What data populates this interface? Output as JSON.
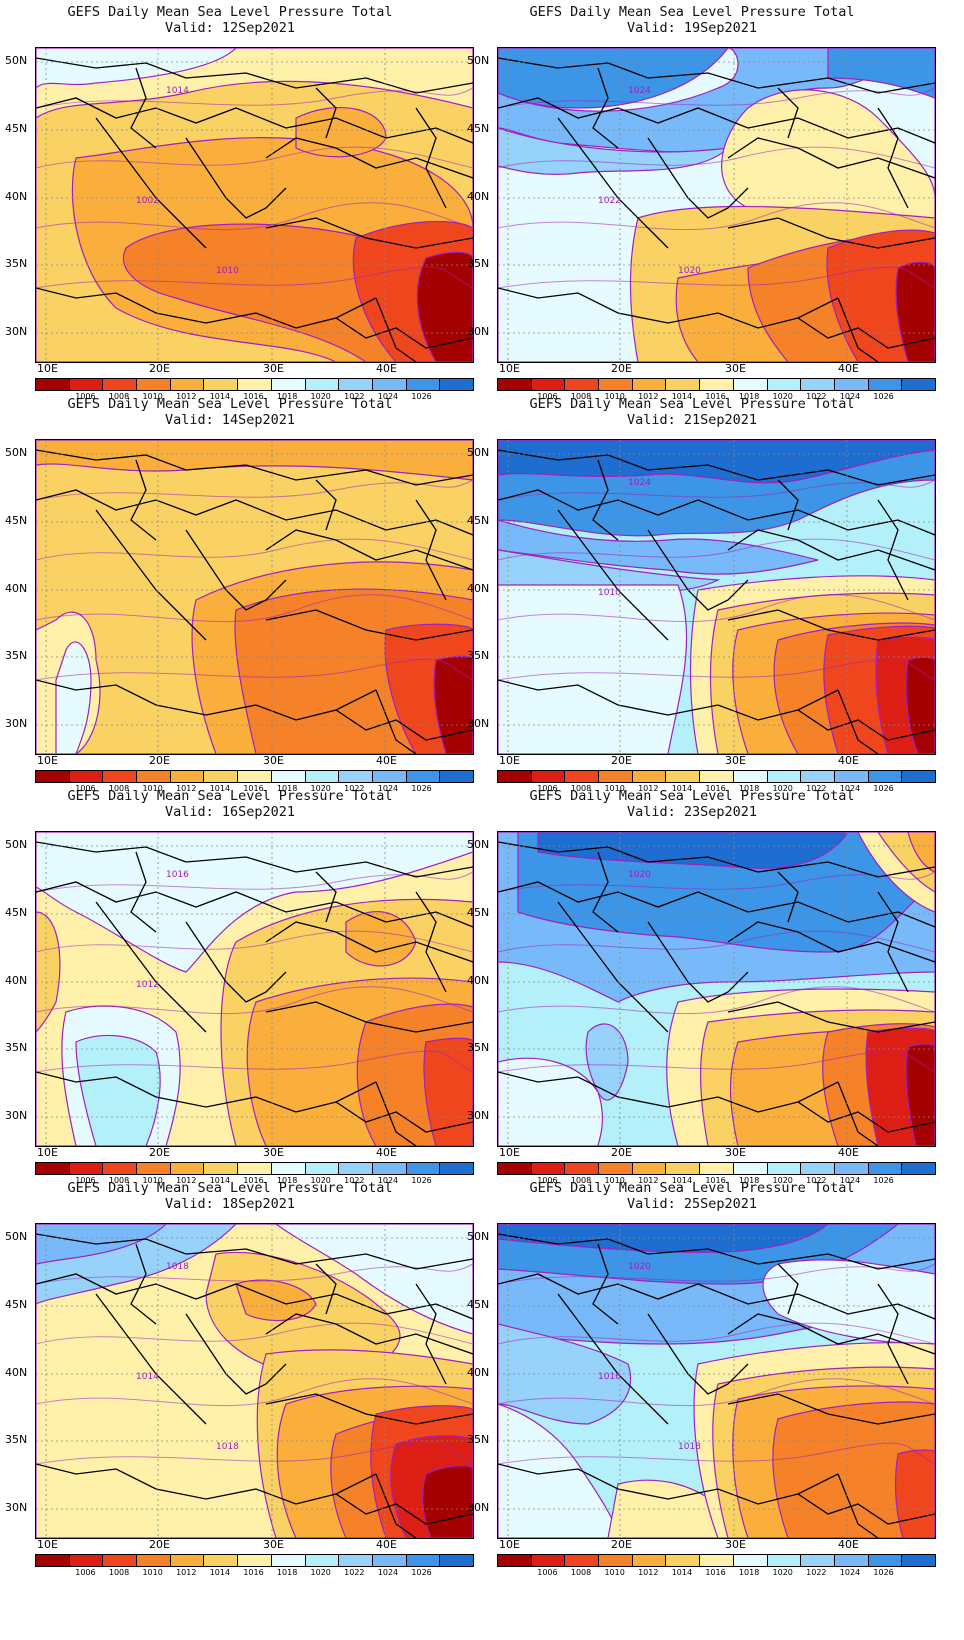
{
  "title_line": "GEFS Daily Mean Sea Level Pressure Total",
  "panels": [
    {
      "valid": "Valid: 12Sep2021",
      "theme": "warm",
      "labels": [
        "1014",
        "1002",
        "1010"
      ]
    },
    {
      "valid": "Valid: 19Sep2021",
      "theme": "mixcool",
      "labels": [
        "1024",
        "1022",
        "1020"
      ]
    },
    {
      "valid": "Valid: 14Sep2021",
      "theme": "warm2",
      "labels": []
    },
    {
      "valid": "Valid: 21Sep2021",
      "theme": "cool",
      "labels": [
        "1024",
        "1010"
      ]
    },
    {
      "valid": "Valid: 16Sep2021",
      "theme": "mild",
      "labels": [
        "1016",
        "1012"
      ]
    },
    {
      "valid": "Valid: 23Sep2021",
      "theme": "cool2",
      "labels": [
        "1020"
      ]
    },
    {
      "valid": "Valid: 18Sep2021",
      "theme": "mixwarm",
      "labels": [
        "1018",
        "1014",
        "1018"
      ]
    },
    {
      "valid": "Valid: 25Sep2021",
      "theme": "cool3",
      "labels": [
        "1020",
        "1016",
        "1018"
      ]
    }
  ],
  "lat_labels": [
    "50N",
    "45N",
    "40N",
    "35N",
    "30N"
  ],
  "lon_labels": [
    "10E",
    "20E",
    "30E",
    "40E"
  ],
  "colorbar": {
    "colors": [
      "#a50000",
      "#dc1e14",
      "#f0461e",
      "#f58228",
      "#faaf3c",
      "#fad264",
      "#fff0aa",
      "#e6fbff",
      "#b4f0fa",
      "#96d2fa",
      "#78b9fa",
      "#3c95e6",
      "#1e6ed2"
    ],
    "labels": [
      "1006",
      "1008",
      "1010",
      "1012",
      "1014",
      "1016",
      "1018",
      "1020",
      "1022",
      "1024",
      "1026"
    ]
  }
}
